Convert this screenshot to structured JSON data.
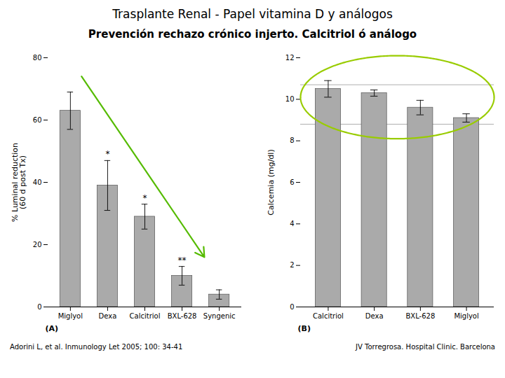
{
  "title": "Trasplante Renal - Papel vitamina D y análogos",
  "subtitle": "Prevención rechazo crónico injerto. Calcitriol ó análogo",
  "annotations": [
    "Adorini L, et al. Inmunology Let 2005; 100: 34-41",
    "JV Torregrosa. Hospital Clinic. Barcelona"
  ],
  "chart_data": [
    {
      "type": "bar",
      "label": "(A)",
      "categories": [
        "Miglyol",
        "Dexa",
        "Calcitriol",
        "BXL-628",
        "Syngenic"
      ],
      "values": [
        63,
        39,
        29,
        10,
        4
      ],
      "errors": [
        6,
        8,
        4,
        3,
        1.5
      ],
      "significance": [
        null,
        "*",
        "*",
        "**",
        null
      ],
      "ylabel": "% Luminal reduction\n(60 d post Tx)",
      "ylim": [
        0,
        80
      ],
      "yticks": [
        0,
        20,
        40,
        60,
        80
      ],
      "color": "#aaaaaa",
      "grid": false,
      "arrow": {
        "x1": 0.3,
        "y1": 74,
        "x2": 3.6,
        "y2": 16,
        "color": "#55bb00"
      }
    },
    {
      "type": "bar",
      "label": "(B)",
      "categories": [
        "Calcitriol",
        "Dexa",
        "BXL-628",
        "Miglyol"
      ],
      "values": [
        10.5,
        10.3,
        9.6,
        9.1
      ],
      "errors": [
        0.4,
        0.15,
        0.35,
        0.2
      ],
      "ylabel": "Calcemia (mg/dl)",
      "ylim": [
        0,
        12
      ],
      "yticks": [
        0,
        2,
        4,
        6,
        8,
        10,
        12
      ],
      "color": "#aaaaaa",
      "grid": false,
      "hlines": [
        {
          "value": 10.7,
          "color": "#999999"
        },
        {
          "value": 8.8,
          "color": "#999999"
        }
      ],
      "ellipse": {
        "x": 1.5,
        "y": 10.1,
        "width": 4.2,
        "height": 4.0,
        "color": "#99cc00"
      }
    }
  ]
}
